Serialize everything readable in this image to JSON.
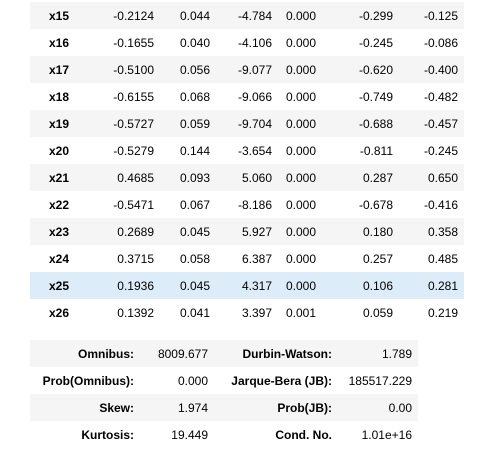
{
  "coefficients": {
    "rows": [
      {
        "name": "x15",
        "coef": "-0.2124",
        "std_err": "0.044",
        "z": "-4.784",
        "p": "0.000",
        "ci_low": "-0.299",
        "ci_high": "-0.125"
      },
      {
        "name": "x16",
        "coef": "-0.1655",
        "std_err": "0.040",
        "z": "-4.106",
        "p": "0.000",
        "ci_low": "-0.245",
        "ci_high": "-0.086"
      },
      {
        "name": "x17",
        "coef": "-0.5100",
        "std_err": "0.056",
        "z": "-9.077",
        "p": "0.000",
        "ci_low": "-0.620",
        "ci_high": "-0.400"
      },
      {
        "name": "x18",
        "coef": "-0.6155",
        "std_err": "0.068",
        "z": "-9.066",
        "p": "0.000",
        "ci_low": "-0.749",
        "ci_high": "-0.482"
      },
      {
        "name": "x19",
        "coef": "-0.5727",
        "std_err": "0.059",
        "z": "-9.704",
        "p": "0.000",
        "ci_low": "-0.688",
        "ci_high": "-0.457"
      },
      {
        "name": "x20",
        "coef": "-0.5279",
        "std_err": "0.144",
        "z": "-3.654",
        "p": "0.000",
        "ci_low": "-0.811",
        "ci_high": "-0.245"
      },
      {
        "name": "x21",
        "coef": "0.4685",
        "std_err": "0.093",
        "z": "5.060",
        "p": "0.000",
        "ci_low": "0.287",
        "ci_high": "0.650"
      },
      {
        "name": "x22",
        "coef": "-0.5471",
        "std_err": "0.067",
        "z": "-8.186",
        "p": "0.000",
        "ci_low": "-0.678",
        "ci_high": "-0.416"
      },
      {
        "name": "x23",
        "coef": "0.2689",
        "std_err": "0.045",
        "z": "5.927",
        "p": "0.000",
        "ci_low": "0.180",
        "ci_high": "0.358"
      },
      {
        "name": "x24",
        "coef": "0.3715",
        "std_err": "0.058",
        "z": "6.387",
        "p": "0.000",
        "ci_low": "0.257",
        "ci_high": "0.485"
      },
      {
        "name": "x25",
        "coef": "0.1936",
        "std_err": "0.045",
        "z": "4.317",
        "p": "0.000",
        "ci_low": "0.106",
        "ci_high": "0.281"
      },
      {
        "name": "x26",
        "coef": "0.1392",
        "std_err": "0.041",
        "z": "3.397",
        "p": "0.001",
        "ci_low": "0.059",
        "ci_high": "0.219"
      }
    ],
    "hover_row": "x25"
  },
  "diagnostics": {
    "rows": [
      {
        "label1": "Omnibus:",
        "value1": "8009.677",
        "label2": "Durbin-Watson:",
        "value2": "1.789"
      },
      {
        "label1": "Prob(Omnibus):",
        "value1": "0.000",
        "label2": "Jarque-Bera (JB):",
        "value2": "185517.229"
      },
      {
        "label1": "Skew:",
        "value1": "1.974",
        "label2": "Prob(JB):",
        "value2": "0.00"
      },
      {
        "label1": "Kurtosis:",
        "value1": "19.449",
        "label2": "Cond. No.",
        "value2": "1.01e+16"
      }
    ]
  },
  "colors": {
    "stripe": "#f5f5f5",
    "hover": "#dcecf8",
    "text": "#000000"
  }
}
